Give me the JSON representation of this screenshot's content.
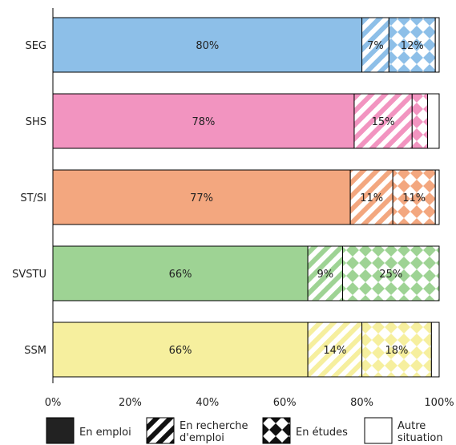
{
  "chart_data": {
    "type": "bar",
    "orientation": "horizontal",
    "stacked": true,
    "title": "",
    "xlabel": "",
    "ylabel": "",
    "xlim": [
      0,
      100
    ],
    "ticks": [
      "0%",
      "20%",
      "40%",
      "60%",
      "80%",
      "100%"
    ],
    "categories": [
      "SEG",
      "SHS",
      "ST/SI",
      "SVSTU",
      "SSM"
    ],
    "category_colors": [
      "#8dbfe8",
      "#f294c0",
      "#f3a77f",
      "#9ed394",
      "#f6ef9e"
    ],
    "series": [
      {
        "name": "En emploi",
        "pattern": "solid",
        "values": [
          80,
          78,
          77,
          66,
          66
        ],
        "labels": [
          "80%",
          "78%",
          "77%",
          "66%",
          "66%"
        ]
      },
      {
        "name": "En recherche d'emploi",
        "pattern": "stripes",
        "values": [
          7,
          15,
          11,
          9,
          14
        ],
        "labels": [
          "7%",
          "15%",
          "11%",
          "9%",
          "14%"
        ]
      },
      {
        "name": "En études",
        "pattern": "checker",
        "values": [
          12,
          4,
          11,
          25,
          18
        ],
        "labels": [
          "12%",
          "",
          "11%",
          "25%",
          "18%"
        ]
      },
      {
        "name": "Autre situation",
        "pattern": "blank",
        "values": [
          1,
          3,
          1,
          0,
          2
        ],
        "labels": [
          "",
          "",
          "",
          "",
          ""
        ]
      }
    ],
    "legend_position": "bottom",
    "grid": false
  }
}
